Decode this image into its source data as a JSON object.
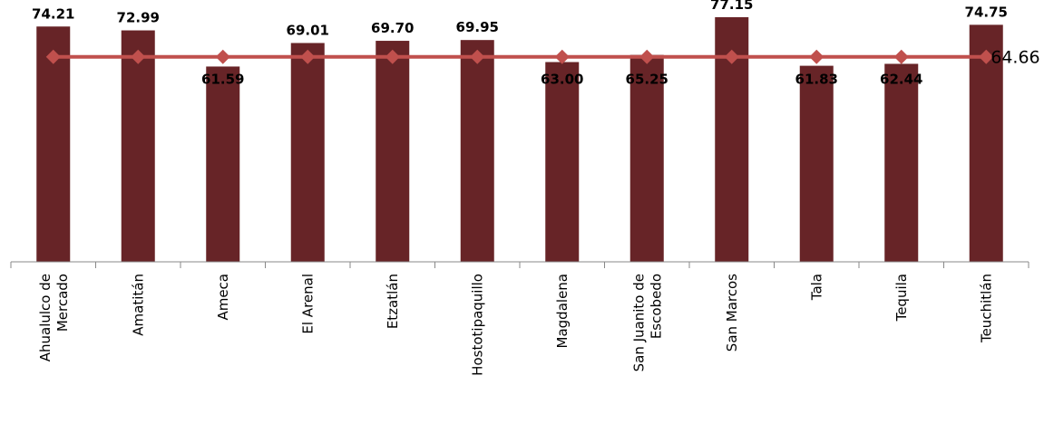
{
  "chart_data": {
    "type": "bar",
    "categories": [
      [
        "Ahualulco de",
        "Mercado"
      ],
      [
        "Amatitán"
      ],
      [
        "Ameca"
      ],
      [
        "El Arenal"
      ],
      [
        "Etzatlán"
      ],
      [
        "Hostotipaquillo"
      ],
      [
        "Magdalena"
      ],
      [
        "San Juanito de",
        "Escobedo"
      ],
      [
        "San Marcos"
      ],
      [
        "Tala"
      ],
      [
        "Tequila"
      ],
      [
        "Teuchitlán"
      ]
    ],
    "values": [
      74.21,
      72.99,
      61.59,
      69.01,
      69.7,
      69.95,
      63.0,
      65.25,
      77.15,
      61.83,
      62.44,
      74.75
    ],
    "value_labels": [
      "74.21",
      "72.99",
      "61.59",
      "69.01",
      "69.70",
      "69.95",
      "63.00",
      "65.25",
      "77.15",
      "61.83",
      "62.44",
      "74.75"
    ],
    "average": 64.66,
    "average_label": "64.66",
    "ylim": [
      0,
      80
    ],
    "title": "",
    "xlabel": "",
    "ylabel": "",
    "grid": false,
    "legend": "none",
    "colors": {
      "bar": "#672427",
      "average_line": "#c0504d"
    }
  }
}
